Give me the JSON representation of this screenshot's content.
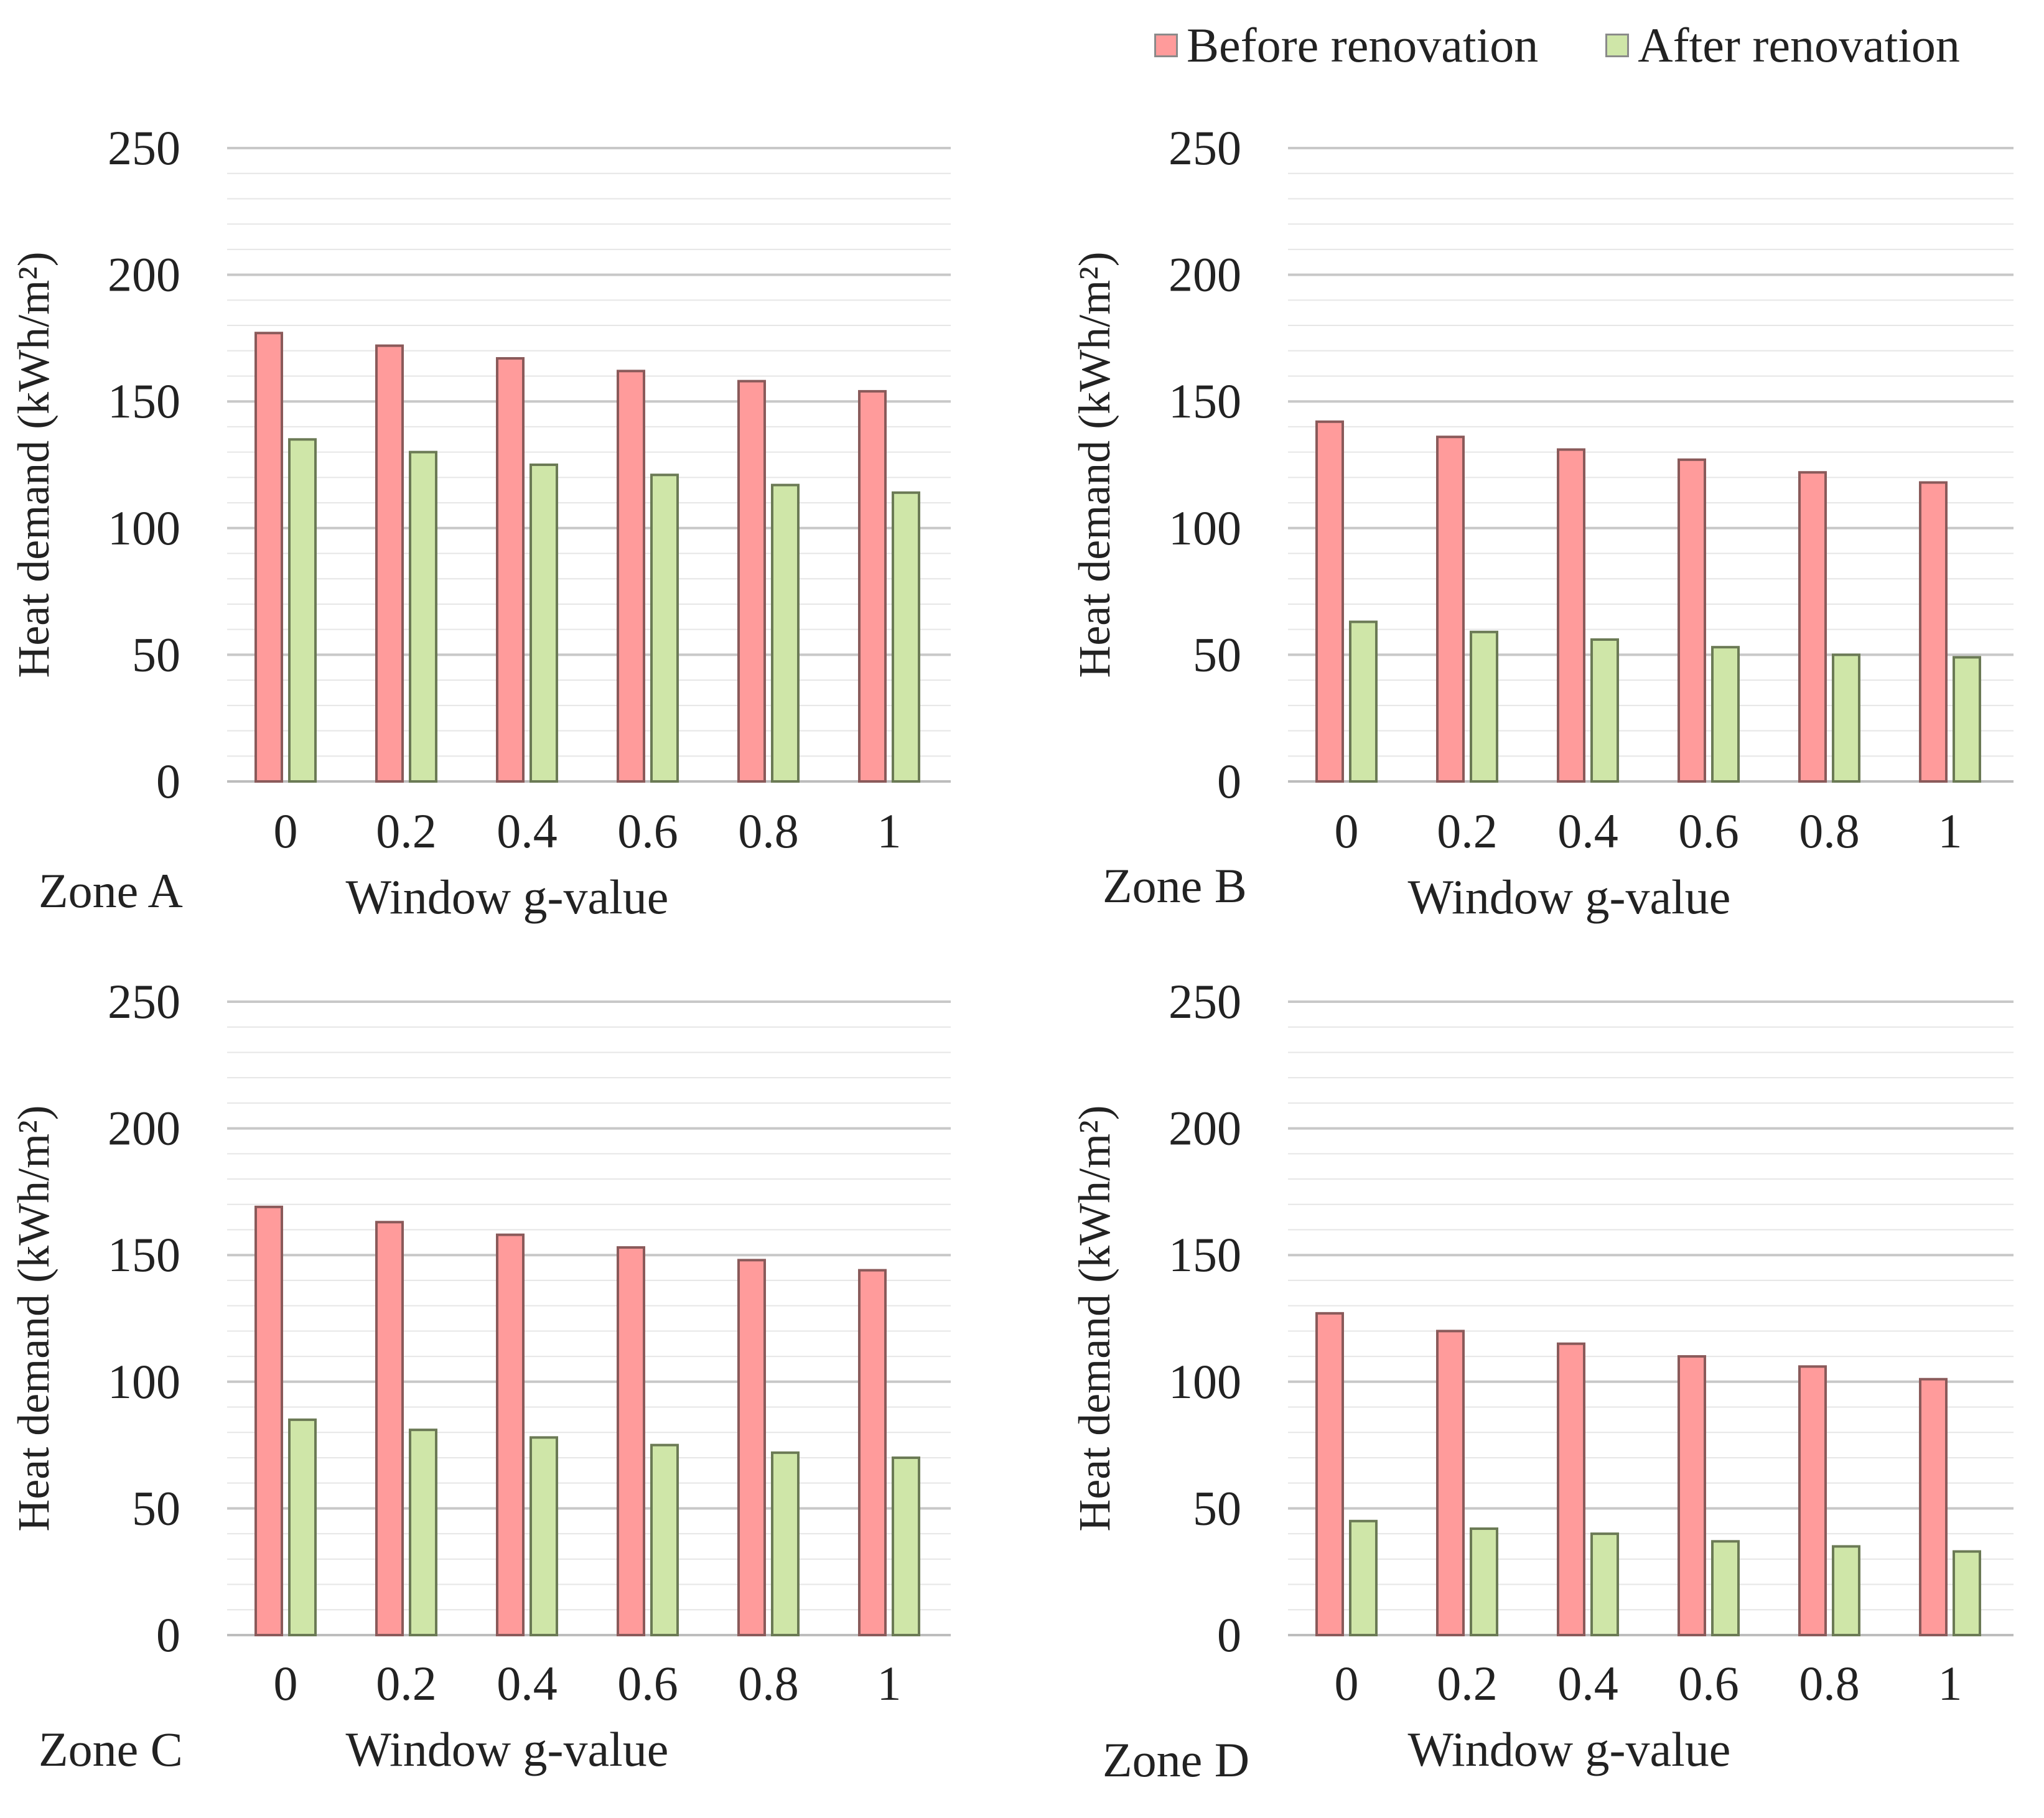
{
  "legend": {
    "before": {
      "label": "Before renovation",
      "color": "#ff9b9b",
      "stroke": "#8a5a5a"
    },
    "after": {
      "label": "After renovation",
      "color": "#cfe6a8",
      "stroke": "#6b7a55"
    }
  },
  "chart_data": [
    {
      "type": "bar",
      "zone_label": "Zone A",
      "xlabel": "Window g-value",
      "ylabel": "Heat demand (kWh/m²)",
      "categories": [
        "0",
        "0.2",
        "0.4",
        "0.6",
        "0.8",
        "1"
      ],
      "ylim": [
        0,
        250
      ],
      "yticks": [
        "0",
        "50",
        "100",
        "150",
        "200",
        "250"
      ],
      "series": [
        {
          "name": "Before renovation",
          "values": [
            177,
            172,
            167,
            162,
            158,
            154
          ]
        },
        {
          "name": "After renovation",
          "values": [
            135,
            130,
            125,
            121,
            117,
            114
          ]
        }
      ]
    },
    {
      "type": "bar",
      "zone_label": "Zone B",
      "xlabel": "Window g-value",
      "ylabel": "Heat demand (kWh/m²)",
      "categories": [
        "0",
        "0.2",
        "0.4",
        "0.6",
        "0.8",
        "1"
      ],
      "ylim": [
        0,
        250
      ],
      "yticks": [
        "0",
        "50",
        "100",
        "150",
        "200",
        "250"
      ],
      "series": [
        {
          "name": "Before renovation",
          "values": [
            142,
            136,
            131,
            127,
            122,
            118
          ]
        },
        {
          "name": "After renovation",
          "values": [
            63,
            59,
            56,
            53,
            50,
            49
          ]
        }
      ]
    },
    {
      "type": "bar",
      "zone_label": "Zone C",
      "xlabel": "Window g-value",
      "ylabel": "Heat demand (kWh/m²)",
      "categories": [
        "0",
        "0.2",
        "0.4",
        "0.6",
        "0.8",
        "1"
      ],
      "ylim": [
        0,
        250
      ],
      "yticks": [
        "0",
        "50",
        "100",
        "150",
        "200",
        "250"
      ],
      "series": [
        {
          "name": "Before renovation",
          "values": [
            169,
            163,
            158,
            153,
            148,
            144
          ]
        },
        {
          "name": "After renovation",
          "values": [
            85,
            81,
            78,
            75,
            72,
            70
          ]
        }
      ]
    },
    {
      "type": "bar",
      "zone_label": "Zone D",
      "xlabel": "Window g-value",
      "ylabel": "Heat demand (kWh/m²)",
      "categories": [
        "0",
        "0.2",
        "0.4",
        "0.6",
        "0.8",
        "1"
      ],
      "ylim": [
        0,
        250
      ],
      "yticks": [
        "0",
        "50",
        "100",
        "150",
        "200",
        "250"
      ],
      "series": [
        {
          "name": "Before renovation",
          "values": [
            127,
            120,
            115,
            110,
            106,
            101
          ]
        },
        {
          "name": "After renovation",
          "values": [
            45,
            42,
            40,
            37,
            35,
            33
          ]
        }
      ]
    }
  ]
}
